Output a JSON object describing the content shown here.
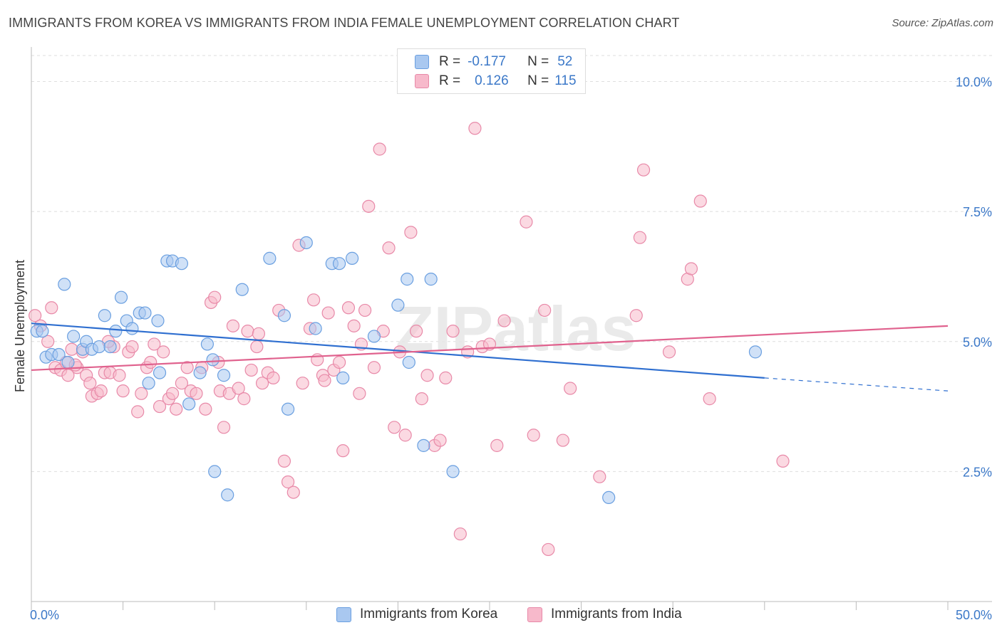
{
  "title": "IMMIGRANTS FROM KOREA VS IMMIGRANTS FROM INDIA FEMALE UNEMPLOYMENT CORRELATION CHART",
  "source": "Source: ZipAtlas.com",
  "watermark": "ZIPatlas",
  "legend": {
    "rows": [
      {
        "r_label": "R =",
        "r_value": "-0.177",
        "n_label": "N =",
        "n_value": "52",
        "color": "#a9c8f0",
        "border": "#6a9fe0"
      },
      {
        "r_label": "R =",
        "r_value": "0.126",
        "n_label": "N =",
        "n_value": "115",
        "color": "#f7b9cb",
        "border": "#e889a8"
      }
    ]
  },
  "bottom_legend": [
    {
      "label": "Immigrants from Korea",
      "color": "#a9c8f0",
      "border": "#6a9fe0"
    },
    {
      "label": "Immigrants from India",
      "color": "#f7b9cb",
      "border": "#e889a8"
    }
  ],
  "chart_data": {
    "type": "scatter",
    "title": "IMMIGRANTS FROM KOREA VS IMMIGRANTS FROM INDIA FEMALE UNEMPLOYMENT CORRELATION CHART",
    "xlabel": "",
    "ylabel": "Female Unemployment",
    "xlim": [
      0,
      50
    ],
    "ylim": [
      0,
      10.5
    ],
    "x_tick_labels": [
      "0.0%",
      "50.0%"
    ],
    "y_ticks": [
      2.5,
      5.0,
      7.5,
      10.0
    ],
    "y_tick_labels": [
      "2.5%",
      "5.0%",
      "7.5%",
      "10.0%"
    ],
    "grid": true,
    "series": [
      {
        "name": "Immigrants from Korea",
        "color": "#a9c8f0",
        "stroke": "#6a9fe0",
        "line_color": "#2f6fd0",
        "trend": {
          "x0": 0,
          "y0": 5.35,
          "x1": 40,
          "y1": 4.3,
          "x_dash_end": 50,
          "y_dash_end": 4.05
        },
        "points": [
          [
            0.3,
            5.2
          ],
          [
            0.6,
            5.2
          ],
          [
            0.8,
            4.7
          ],
          [
            1.1,
            4.75
          ],
          [
            1.5,
            4.75
          ],
          [
            1.8,
            6.1
          ],
          [
            2.0,
            4.6
          ],
          [
            2.3,
            5.1
          ],
          [
            2.8,
            4.85
          ],
          [
            3.0,
            5.0
          ],
          [
            3.3,
            4.85
          ],
          [
            3.7,
            4.9
          ],
          [
            4.0,
            5.5
          ],
          [
            4.3,
            4.9
          ],
          [
            4.6,
            5.2
          ],
          [
            4.9,
            5.85
          ],
          [
            5.2,
            5.4
          ],
          [
            5.5,
            5.25
          ],
          [
            5.9,
            5.55
          ],
          [
            6.2,
            5.55
          ],
          [
            6.4,
            4.2
          ],
          [
            6.9,
            5.4
          ],
          [
            7.0,
            4.4
          ],
          [
            7.4,
            6.55
          ],
          [
            7.7,
            6.55
          ],
          [
            8.2,
            6.5
          ],
          [
            8.6,
            3.8
          ],
          [
            9.2,
            4.4
          ],
          [
            9.6,
            4.95
          ],
          [
            9.9,
            4.65
          ],
          [
            10.0,
            2.5
          ],
          [
            10.5,
            4.35
          ],
          [
            10.7,
            2.05
          ],
          [
            11.5,
            6.0
          ],
          [
            13.0,
            6.6
          ],
          [
            13.8,
            5.5
          ],
          [
            14.0,
            3.7
          ],
          [
            15.0,
            6.9
          ],
          [
            15.5,
            5.25
          ],
          [
            16.4,
            6.5
          ],
          [
            16.8,
            6.5
          ],
          [
            17.0,
            4.3
          ],
          [
            17.5,
            6.6
          ],
          [
            18.7,
            5.1
          ],
          [
            20.0,
            5.7
          ],
          [
            20.5,
            6.2
          ],
          [
            20.6,
            4.6
          ],
          [
            21.4,
            3.0
          ],
          [
            21.8,
            6.2
          ],
          [
            23.0,
            2.5
          ],
          [
            31.5,
            2.0
          ],
          [
            39.5,
            4.8
          ]
        ]
      },
      {
        "name": "Immigrants from India",
        "color": "#f7b9cb",
        "stroke": "#e889a8",
        "line_color": "#e0628e",
        "trend": {
          "x0": 0,
          "y0": 4.45,
          "x1": 50,
          "y1": 5.3
        },
        "points": [
          [
            0.2,
            5.5
          ],
          [
            0.5,
            5.3
          ],
          [
            0.9,
            5.0
          ],
          [
            1.1,
            5.65
          ],
          [
            1.3,
            4.5
          ],
          [
            1.6,
            4.45
          ],
          [
            1.9,
            4.6
          ],
          [
            2.0,
            4.35
          ],
          [
            2.2,
            4.85
          ],
          [
            2.5,
            4.5
          ],
          [
            2.8,
            4.8
          ],
          [
            3.0,
            4.35
          ],
          [
            3.2,
            4.2
          ],
          [
            3.3,
            3.95
          ],
          [
            3.6,
            4.0
          ],
          [
            3.8,
            4.05
          ],
          [
            4.0,
            4.4
          ],
          [
            4.3,
            4.4
          ],
          [
            4.5,
            4.9
          ],
          [
            4.8,
            4.35
          ],
          [
            5.0,
            4.05
          ],
          [
            5.3,
            4.8
          ],
          [
            5.5,
            4.9
          ],
          [
            5.8,
            3.65
          ],
          [
            6.0,
            4.0
          ],
          [
            6.3,
            4.5
          ],
          [
            6.5,
            4.6
          ],
          [
            6.7,
            4.95
          ],
          [
            7.0,
            3.75
          ],
          [
            7.2,
            4.8
          ],
          [
            7.5,
            3.9
          ],
          [
            7.7,
            4.0
          ],
          [
            7.9,
            3.7
          ],
          [
            8.2,
            4.2
          ],
          [
            8.5,
            4.5
          ],
          [
            8.7,
            4.05
          ],
          [
            9.0,
            4.0
          ],
          [
            9.3,
            4.5
          ],
          [
            9.5,
            3.7
          ],
          [
            9.8,
            5.75
          ],
          [
            10.0,
            5.85
          ],
          [
            10.3,
            4.05
          ],
          [
            10.5,
            3.35
          ],
          [
            10.8,
            4.0
          ],
          [
            11.0,
            5.3
          ],
          [
            11.3,
            4.1
          ],
          [
            11.6,
            3.9
          ],
          [
            11.8,
            5.2
          ],
          [
            12.0,
            4.45
          ],
          [
            12.3,
            4.9
          ],
          [
            12.6,
            4.2
          ],
          [
            12.9,
            4.4
          ],
          [
            13.2,
            4.3
          ],
          [
            13.5,
            5.6
          ],
          [
            13.8,
            2.7
          ],
          [
            14.0,
            2.3
          ],
          [
            14.3,
            2.1
          ],
          [
            14.6,
            6.85
          ],
          [
            14.8,
            4.2
          ],
          [
            15.2,
            5.25
          ],
          [
            15.4,
            5.8
          ],
          [
            15.6,
            4.65
          ],
          [
            15.9,
            4.35
          ],
          [
            16.2,
            5.55
          ],
          [
            16.5,
            4.45
          ],
          [
            16.8,
            4.6
          ],
          [
            17.0,
            2.9
          ],
          [
            17.3,
            5.65
          ],
          [
            17.6,
            5.3
          ],
          [
            17.9,
            4.0
          ],
          [
            18.2,
            5.6
          ],
          [
            18.4,
            7.6
          ],
          [
            18.7,
            4.5
          ],
          [
            19.0,
            8.7
          ],
          [
            19.2,
            5.2
          ],
          [
            19.5,
            6.8
          ],
          [
            19.8,
            3.35
          ],
          [
            20.1,
            4.8
          ],
          [
            20.4,
            3.2
          ],
          [
            20.7,
            7.1
          ],
          [
            21.0,
            5.2
          ],
          [
            21.3,
            3.9
          ],
          [
            21.6,
            4.35
          ],
          [
            22.0,
            3.0
          ],
          [
            22.3,
            3.1
          ],
          [
            22.6,
            4.3
          ],
          [
            23.0,
            5.2
          ],
          [
            23.4,
            1.3
          ],
          [
            23.8,
            4.8
          ],
          [
            24.2,
            9.1
          ],
          [
            24.6,
            4.9
          ],
          [
            25.0,
            4.95
          ],
          [
            25.4,
            3.0
          ],
          [
            25.8,
            5.4
          ],
          [
            27.0,
            7.3
          ],
          [
            27.4,
            3.2
          ],
          [
            28.0,
            5.6
          ],
          [
            28.2,
            1.0
          ],
          [
            29.0,
            3.1
          ],
          [
            29.4,
            4.1
          ],
          [
            31.0,
            2.4
          ],
          [
            33.0,
            5.5
          ],
          [
            33.2,
            7.0
          ],
          [
            33.4,
            8.3
          ],
          [
            34.8,
            4.8
          ],
          [
            35.8,
            6.2
          ],
          [
            36.0,
            6.4
          ],
          [
            36.5,
            7.7
          ],
          [
            37.0,
            3.9
          ],
          [
            41.0,
            2.7
          ],
          [
            4.2,
            5.0
          ],
          [
            2.4,
            4.55
          ],
          [
            10.2,
            4.6
          ],
          [
            12.4,
            5.15
          ],
          [
            16.0,
            4.25
          ],
          [
            18.0,
            4.95
          ]
        ]
      }
    ]
  }
}
